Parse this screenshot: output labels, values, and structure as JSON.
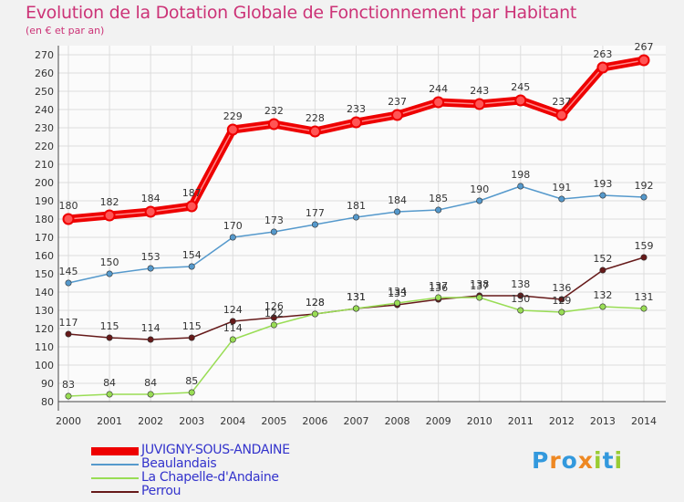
{
  "chart_data": {
    "type": "line",
    "title": "Evolution de la Dotation Globale de Fonctionnement par Habitant",
    "subtitle": "(en € et par an)",
    "xlabel": "",
    "ylabel": "",
    "ylim": [
      80,
      270
    ],
    "ytick_step": 10,
    "grid": true,
    "legend_position": "bottom-left",
    "x": [
      "2000",
      "2001",
      "2002",
      "2003",
      "2004",
      "2005",
      "2006",
      "2007",
      "2008",
      "2009",
      "2010",
      "2011",
      "2012",
      "2013",
      "2014"
    ],
    "series": [
      {
        "name": "JUVIGNY-SOUS-ANDAINE",
        "color": "#ee0000",
        "values": [
          180,
          182,
          184,
          187,
          229,
          232,
          228,
          233,
          237,
          244,
          243,
          245,
          237,
          263,
          267
        ],
        "labels": [
          "180",
          "182",
          "184",
          "187",
          "229",
          "232",
          "228",
          "233",
          "237",
          "244",
          "243",
          "245",
          "237",
          "263",
          "267"
        ]
      },
      {
        "name": "Beaulandais",
        "color": "#5599cc",
        "values": [
          145,
          150,
          153,
          154,
          170,
          173,
          177,
          181,
          184,
          185,
          190,
          198,
          191,
          193,
          192
        ],
        "labels": [
          "145",
          "150",
          "153",
          "154",
          "170",
          "173",
          "177",
          "181",
          "184",
          "185",
          "190",
          "198",
          "191",
          "193",
          "192"
        ]
      },
      {
        "name": "La Chapelle-d'Andaine",
        "color": "#99dd55",
        "values": [
          83,
          84,
          84,
          85,
          114,
          122,
          128,
          131,
          134,
          137,
          137,
          130,
          129,
          132,
          131
        ],
        "labels": [
          "83",
          "84",
          "84",
          "85",
          "114",
          "122",
          "128",
          "131",
          "134",
          "137",
          "137",
          "130",
          "129",
          "132",
          "131"
        ]
      },
      {
        "name": "Perrou",
        "color": "#661a1a",
        "values": [
          117,
          115,
          114,
          115,
          124,
          126,
          128,
          131,
          133,
          136,
          138,
          138,
          136,
          152,
          159
        ],
        "labels": [
          "117",
          "115",
          "114",
          "115",
          "124",
          "126",
          "128",
          "131",
          "133",
          "136",
          "138",
          "138",
          "136",
          "152",
          "159"
        ]
      }
    ]
  },
  "logo": {
    "letters": [
      "P",
      "r",
      "o",
      "x",
      "i",
      "t",
      "i"
    ],
    "colors": [
      "#3399dd",
      "#ee8822",
      "#3399dd",
      "#ee8822",
      "#99cc33",
      "#3399dd",
      "#99cc33"
    ]
  }
}
